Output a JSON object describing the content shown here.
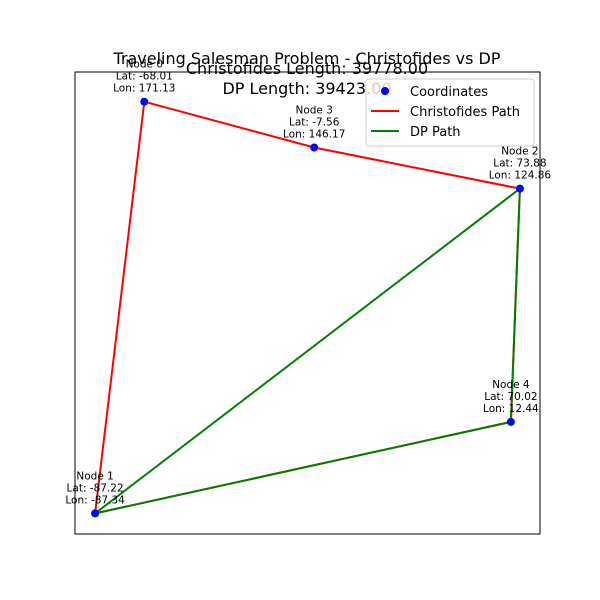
{
  "chart_data": {
    "type": "line",
    "title": "Traveling Salesman Problem - Christofides vs DP",
    "subtitle_lines": [
      "Christofides Length: 39778.00",
      "DP Length: 39423.00"
    ],
    "xlabel": "",
    "ylabel": "",
    "grid": false,
    "show_axes_ticks": false,
    "legend_position": "top-right",
    "nodes": [
      {
        "name": "Node 0",
        "lat_label": "Lat: -68.01",
        "lon_label": "Lon: 171.13",
        "x": 0.11,
        "y": 0.94
      },
      {
        "name": "Node 1",
        "lat_label": "Lat: -87.22",
        "lon_label": "Lon: -87.34",
        "x": 0.0,
        "y": 0.04
      },
      {
        "name": "Node 2",
        "lat_label": "Lat: 73.88",
        "lon_label": "Lon: 124.86",
        "x": 0.95,
        "y": 0.75
      },
      {
        "name": "Node 3",
        "lat_label": "Lat: -7.56",
        "lon_label": "Lon: 146.17",
        "x": 0.49,
        "y": 0.84
      },
      {
        "name": "Node 4",
        "lat_label": "Lat: 70.02",
        "lon_label": "Lon: 12.44",
        "x": 0.93,
        "y": 0.24
      }
    ],
    "series": [
      {
        "name": "Coordinates",
        "kind": "scatter",
        "color": "#0000ff"
      },
      {
        "name": "Christofides Path",
        "kind": "line",
        "color": "#ff0000",
        "route": [
          1,
          0,
          3,
          2,
          4,
          1
        ]
      },
      {
        "name": "DP Path",
        "kind": "line",
        "color": "#008000",
        "route": [
          1,
          2,
          4,
          1
        ]
      }
    ],
    "xlim": [
      -0.045,
      0.995
    ],
    "ylim": [
      -0.005,
      1.005
    ]
  }
}
